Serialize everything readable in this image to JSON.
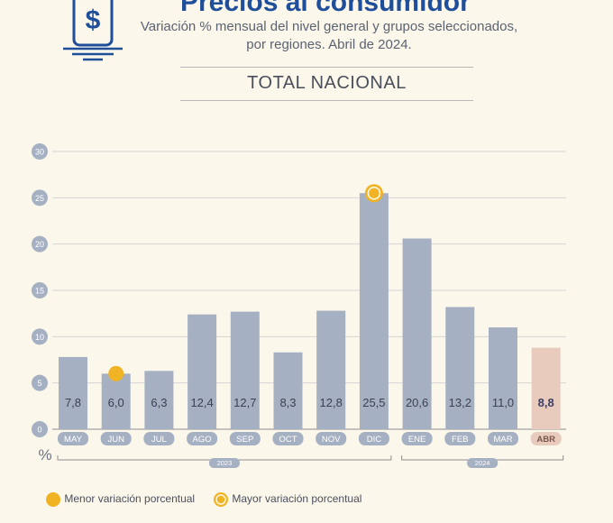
{
  "header": {
    "title": "Precios al consumidor",
    "subtitle_line1": "Variación % mensual del nivel general y grupos seleccionados,",
    "subtitle_line2": "por regiones. Abril de 2024.",
    "section_title": "TOTAL NACIONAL",
    "logo_icon": "dollar-phone-icon"
  },
  "chart_data": {
    "type": "bar",
    "categories": [
      "MAY",
      "JUN",
      "JUL",
      "AGO",
      "SEP",
      "OCT",
      "NOV",
      "DIC",
      "ENE",
      "FEB",
      "MAR",
      "ABR"
    ],
    "values": [
      7.8,
      6.0,
      6.3,
      12.4,
      12.7,
      8.3,
      12.8,
      25.5,
      20.6,
      13.2,
      11.0,
      8.8
    ],
    "value_labels": [
      "7,8",
      "6,0",
      "6,3",
      "12,4",
      "12,7",
      "8,3",
      "12,8",
      "25,5",
      "20,6",
      "13,2",
      "11,0",
      "8,8"
    ],
    "y_ticks": [
      "0",
      "5",
      "10",
      "15",
      "20",
      "25",
      "30"
    ],
    "ylim": [
      0,
      30
    ],
    "ylabel": "%",
    "year_groups": [
      {
        "label": "2023",
        "from": 0,
        "to": 7
      },
      {
        "label": "2024",
        "from": 8,
        "to": 11
      }
    ],
    "highlight_index": 11,
    "min_index": 1,
    "max_index": 7,
    "grid": true,
    "colors": {
      "bar": "#a6b0c3",
      "highlight_bar": "#e8cbbd",
      "label_bg": "#a6b0c3",
      "highlight_label_bg": "#e8cbbd",
      "marker": "#f0b323",
      "value_text": "#3a4150",
      "highlight_value_text": "#3d3f66"
    }
  },
  "legend": {
    "min_label": "Menor variación porcentual",
    "max_label": "Mayor variación porcentual"
  }
}
